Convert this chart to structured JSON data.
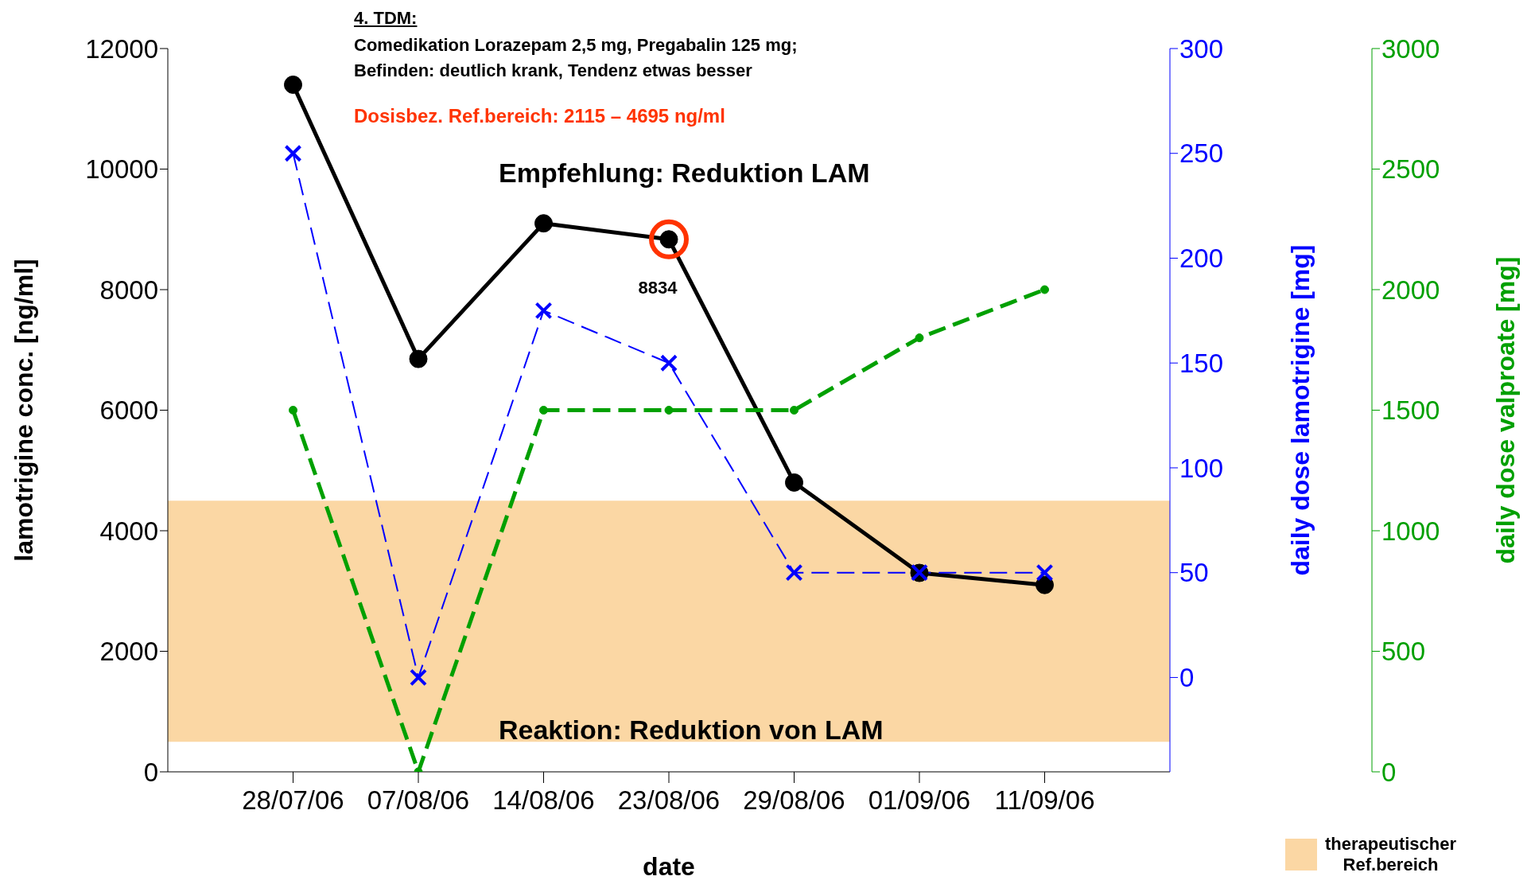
{
  "chart_data": {
    "type": "line",
    "annotations": [
      "4. TDM:",
      "Comedikation Lorazepam 2,5 mg, Pregabalin 125 mg;",
      "Befinden: deutlich krank, Tendenz etwas besser",
      "Dosisbez. Ref.bereich: 2115 – 4695 ng/ml",
      "Empfehlung: Reduktion LAM",
      "Reaktion: Reduktion von LAM"
    ],
    "xlabel": "date",
    "ylabel": "lamotrigine conc. [ng/ml]",
    "y2label": "daily dose lamotrigine [mg]",
    "y3label": "daily dose valproate [mg]",
    "categories": [
      "28/07/06",
      "07/08/06",
      "14/08/06",
      "23/08/06",
      "29/08/06",
      "01/09/06",
      "11/09/06"
    ],
    "series": [
      {
        "color": "#000000",
        "marker": "circle",
        "line_style": "solid",
        "values": [
          11400,
          6850,
          9100,
          8834,
          4800,
          3300,
          3100
        ],
        "value_labels": [
          null,
          null,
          null,
          "8834",
          null,
          null,
          null
        ]
      },
      {
        "color": "#0000ff",
        "marker": "cross",
        "line_style": "dashed",
        "axis": "y2",
        "values": [
          250,
          0,
          175,
          150,
          50,
          50,
          50
        ]
      },
      {
        "color": "#00a000",
        "marker": "circle",
        "line_style": "dashed",
        "axis": "y3",
        "values": [
          1500,
          0,
          1500,
          1500,
          1500,
          1800,
          2000
        ]
      }
    ],
    "ylim": [
      0,
      12000
    ],
    "yticks": [
      0,
      2000,
      4000,
      6000,
      8000,
      10000,
      12000
    ],
    "y2lim": [
      -45,
      300
    ],
    "y2ticks": [
      0,
      50,
      100,
      150,
      200,
      250,
      300
    ],
    "y3lim": [
      0,
      3000
    ],
    "y3ticks": [
      0,
      500,
      1000,
      1500,
      2000,
      2500,
      3000
    ],
    "bands": [
      {
        "axis": "y",
        "from": 500,
        "to": 4500,
        "label": "therapeutischer Ref.bereich",
        "color": "#fbd7a4"
      }
    ],
    "legend": "bottom right"
  }
}
